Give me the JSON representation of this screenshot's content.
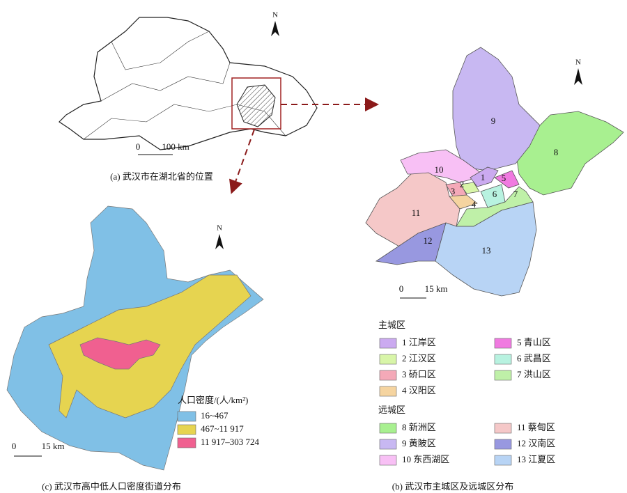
{
  "panel_a": {
    "caption": "(a) 武汉市在湖北省的位置",
    "north": "N",
    "scale_zero": "0",
    "scale_label": "100 km"
  },
  "panel_b": {
    "caption": "(b) 武汉市主城区及远城区分布",
    "north": "N",
    "scale_zero": "0",
    "scale_label": "15 km",
    "map_labels": [
      "1",
      "2",
      "3",
      "4",
      "5",
      "6",
      "7",
      "8",
      "9",
      "10",
      "11",
      "12",
      "13"
    ],
    "legend": [
      {
        "title": "主城区",
        "items": [
          {
            "label": "1 江岸区",
            "color": "#cbaaf0"
          },
          {
            "label": "2 江汉区",
            "color": "#d8f5a8"
          },
          {
            "label": "3 硚口区",
            "color": "#f4a9b8"
          },
          {
            "label": "4 汉阳区",
            "color": "#f5d4a0"
          },
          {
            "label": "5 青山区",
            "color": "#f07ae0"
          },
          {
            "label": "6 武昌区",
            "color": "#b8f2e0"
          },
          {
            "label": "7 洪山区",
            "color": "#bff0a8"
          }
        ]
      },
      {
        "title": "远城区",
        "items": [
          {
            "label": "8 新洲区",
            "color": "#a8f090"
          },
          {
            "label": "9 黄陂区",
            "color": "#c8b8f2"
          },
          {
            "label": "10 东西湖区",
            "color": "#f8c0f5"
          },
          {
            "label": "11 蔡甸区",
            "color": "#f5c8c8"
          },
          {
            "label": "12 汉南区",
            "color": "#9898e0"
          },
          {
            "label": "13 江夏区",
            "color": "#b8d4f5"
          }
        ]
      }
    ]
  },
  "panel_c": {
    "caption": "(c) 武汉市高中低人口密度街道分布",
    "north": "N",
    "scale_zero": "0",
    "scale_label": "15 km",
    "legend_title": "人口密度/(人/km²)",
    "legend": [
      {
        "label": "16~467",
        "color": "#80c0e6"
      },
      {
        "label": "467~11 917",
        "color": "#e6d450"
      },
      {
        "label": "11 917–303 724",
        "color": "#f06090"
      }
    ]
  }
}
